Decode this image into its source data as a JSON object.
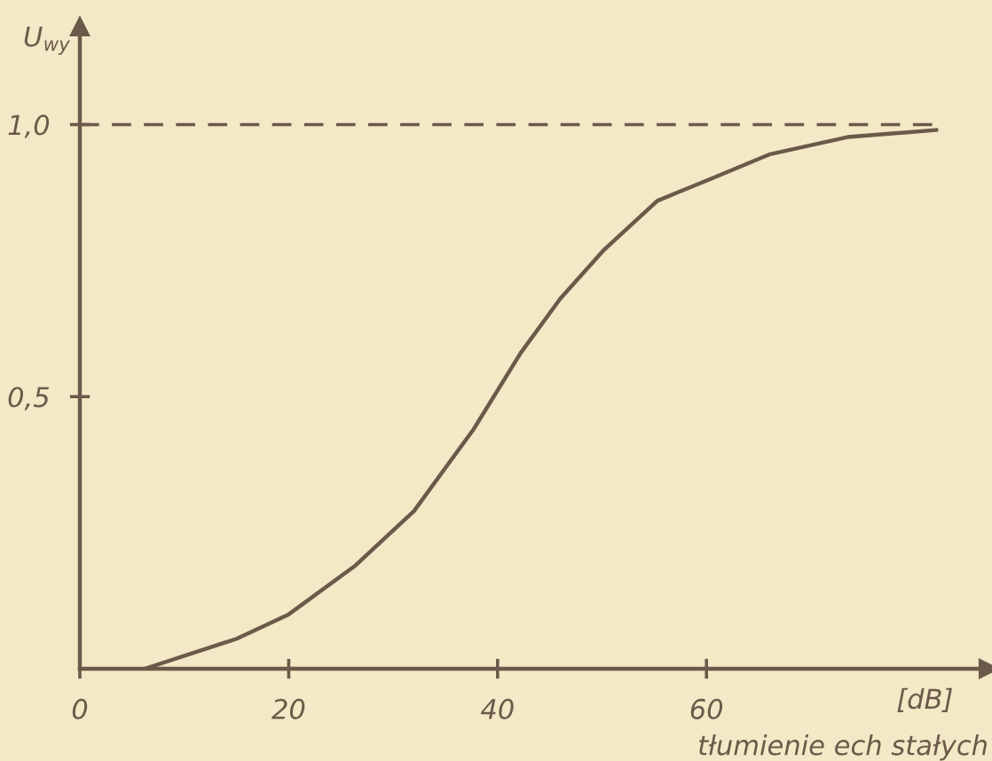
{
  "chart_data": {
    "type": "line",
    "xlabel": "tłumienie ech stałych",
    "ylabel": "U$_{wy}$",
    "annotations": [
      "[dB]"
    ],
    "x": [
      6.2,
      15,
      20,
      26.4,
      32,
      37.7,
      42.2,
      46,
      50.2,
      55.3,
      60.4,
      66,
      73.5,
      82
    ],
    "series": [
      {
        "color": "#6b5a4a",
        "values": [
          0,
          0.055,
          0.1,
          0.19,
          0.29,
          0.44,
          0.58,
          0.68,
          0.77,
          0.86,
          0.9,
          0.945,
          0.977,
          0.99
        ]
      }
    ],
    "xlim": [
      0,
      87
    ],
    "ylim": [
      0,
      1.18
    ],
    "xticks": [
      {
        "value": 0,
        "label": "0"
      },
      20,
      40,
      60
    ],
    "yticks": [
      {
        "value": 0.5,
        "label": "0,5"
      },
      {
        "value": 1.0,
        "label": "1,0"
      }
    ],
    "ref_lines": [
      {
        "axis": "y",
        "value": 1.0,
        "color": "#6b5a4a",
        "line_style": "dashed"
      }
    ],
    "grid": false,
    "legend": false,
    "marker": "none",
    "line_style": "solid"
  }
}
